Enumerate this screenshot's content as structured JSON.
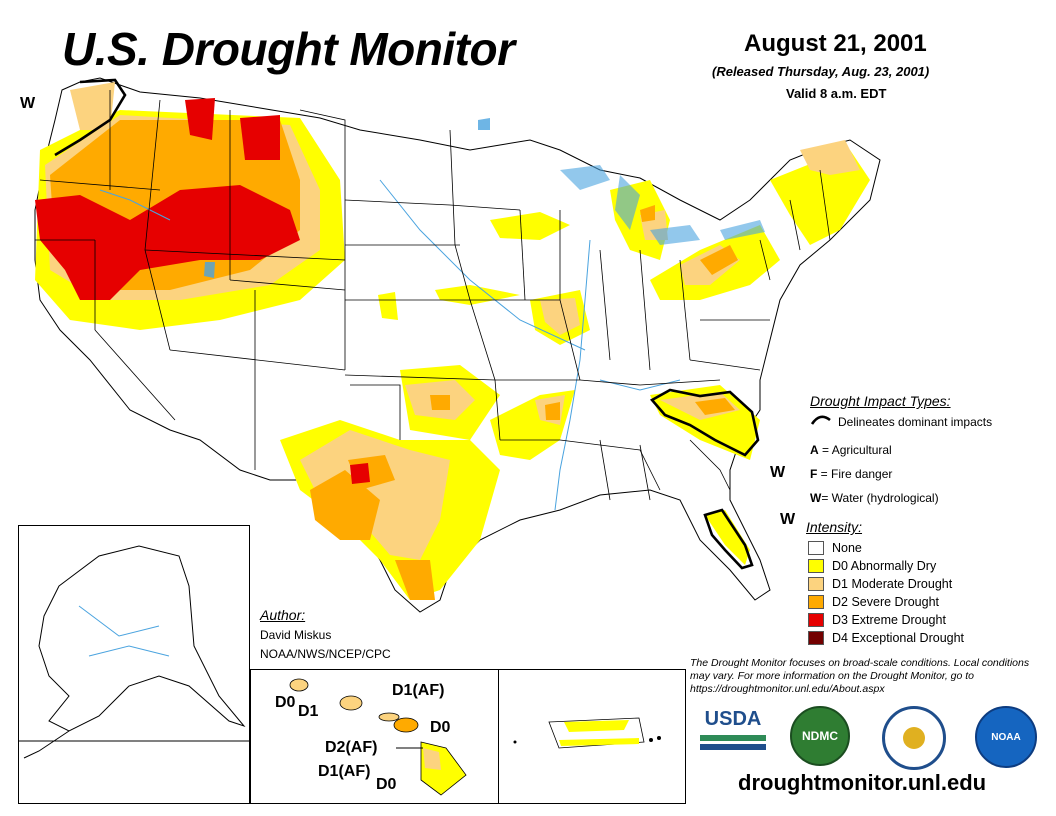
{
  "header": {
    "title": "U.S. Drought Monitor",
    "date": "August 21, 2001",
    "released": "(Released Thursday, Aug. 23, 2001)",
    "valid": "Valid 8 a.m. EDT"
  },
  "impact_legend": {
    "heading": "Drought Impact Types:",
    "delineates": "Delineates dominant impacts",
    "types": [
      {
        "code": "A",
        "sep": " = ",
        "label": "Agricultural"
      },
      {
        "code": "F",
        "sep": " = ",
        "label": "Fire danger"
      },
      {
        "code": "W",
        "sep": "= ",
        "label": "Water (hydrological)"
      }
    ]
  },
  "intensity_legend": {
    "heading": "Intensity:",
    "items": [
      {
        "label": "None",
        "color": "#ffffff"
      },
      {
        "label": "D0 Abnormally Dry",
        "color": "#ffff00"
      },
      {
        "label": "D1 Moderate Drought",
        "color": "#fcd37f"
      },
      {
        "label": "D2 Severe Drought",
        "color": "#ffaa00"
      },
      {
        "label": "D3 Extreme Drought",
        "color": "#e60000"
      },
      {
        "label": "D4 Exceptional Drought",
        "color": "#730000"
      }
    ]
  },
  "author": {
    "heading": "Author:",
    "name": "David Miskus",
    "org": "NOAA/NWS/NCEP/CPC"
  },
  "map_labels": {
    "w_northwest": "W",
    "w_carolinas": "W",
    "w_florida": "W"
  },
  "hawaii_labels": {
    "d0_kauai": "D0",
    "d1_oahu": "D1",
    "d1af_molokai": "D1(AF)",
    "d0_maui": "D0",
    "d2af": "D2(AF)",
    "d1af_bigisland": "D1(AF)",
    "d0_bigisland": "D0"
  },
  "footer": {
    "note": "The Drought Monitor focuses on broad-scale conditions. Local conditions may vary. For more information on the Drought Monitor, go to https://droughtmonitor.unl.edu/About.aspx",
    "url": "droughtmonitor.unl.edu",
    "logos": {
      "usda": "USDA",
      "ndmc": "NDMC",
      "noaa": "NOAA"
    }
  },
  "colors": {
    "none": "#ffffff",
    "d0": "#ffff00",
    "d1": "#fcd37f",
    "d2": "#ffaa00",
    "d3": "#e60000",
    "d4": "#730000",
    "water": "#4aa3df",
    "usda_blue": "#1f4e8c",
    "usda_green": "#2e8b57",
    "ndmc_green": "#2f7d32",
    "noaa_blue": "#1565c0"
  }
}
